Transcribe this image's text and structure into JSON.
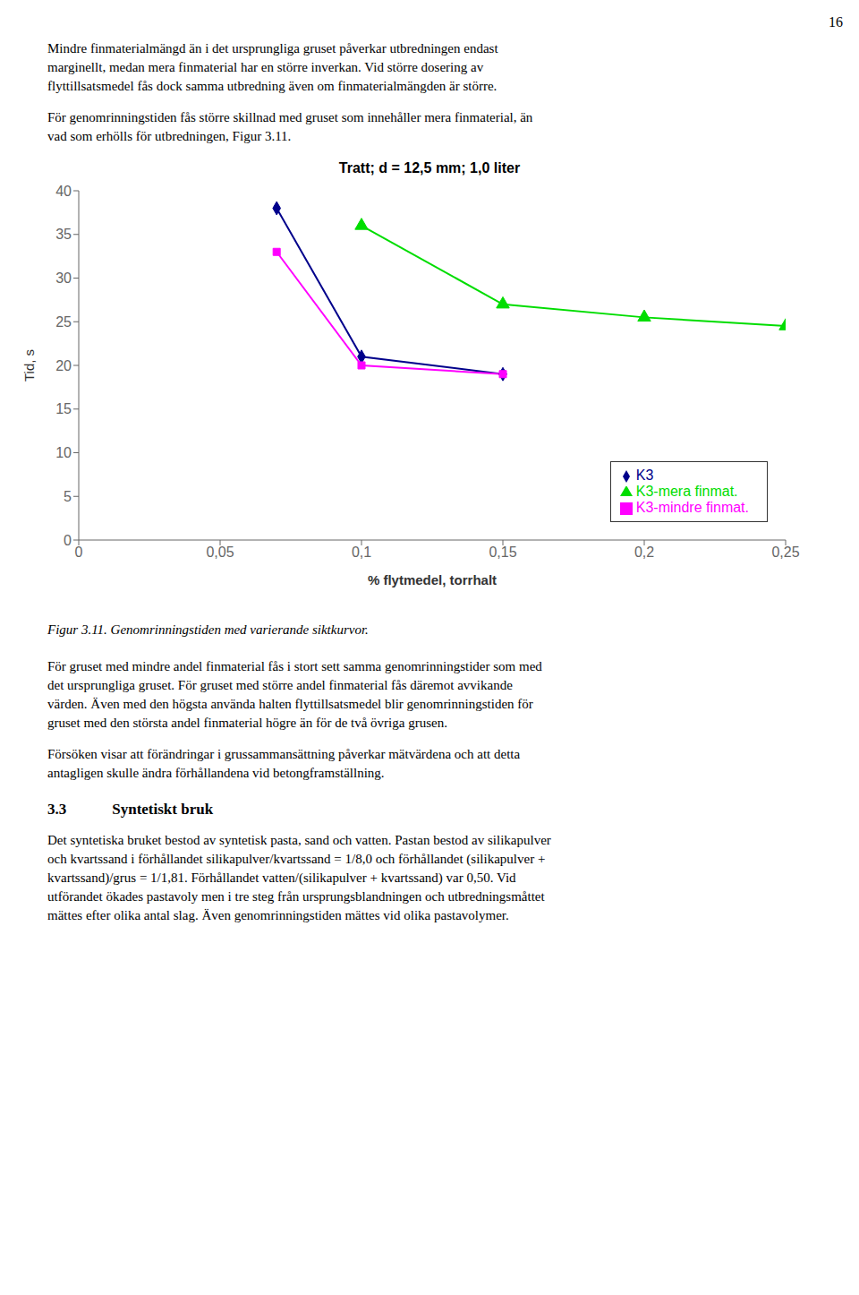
{
  "chart_data": {
    "type": "line",
    "title": "Tratt; d = 12,5 mm; 1,0 liter",
    "x_label": "% flytmedel, torrhalt",
    "y_label": "Tid, s",
    "xlim": [
      0,
      0.25
    ],
    "ylim": [
      0,
      40
    ],
    "xticks": [
      0,
      {
        "value": 0.05,
        "label": "0,05"
      },
      {
        "value": 0.1,
        "label": "0,1"
      },
      {
        "value": 0.15,
        "label": "0,15"
      },
      {
        "value": 0.2,
        "label": "0,2"
      },
      {
        "value": 0.25,
        "label": "0,25"
      }
    ],
    "yticks": [
      0,
      5,
      10,
      15,
      20,
      25,
      30,
      35,
      40
    ],
    "grid": false,
    "legend": "lower right",
    "series": [
      {
        "name": "K3",
        "color": "#00008B",
        "marker": "diamond",
        "x": [
          0.07,
          0.1,
          0.15
        ],
        "values": [
          38.0,
          21.0,
          19.0
        ]
      },
      {
        "name": "K3-mindre finmat.",
        "color": "#FF00FF",
        "marker": "square",
        "x": [
          0.07,
          0.1,
          0.15
        ],
        "values": [
          33.0,
          20.0,
          19.0
        ]
      },
      {
        "name": "K3-mera finmat.",
        "color": "#00DD00",
        "marker": "triangle",
        "x": [
          0.1,
          0.15,
          0.2,
          0.25
        ],
        "values": [
          36.0,
          27.0,
          25.5,
          24.5
        ]
      }
    ]
  },
  "page_number": "16",
  "text_before": [
    "Mindre finmaterialmängd än i det ursprungliga gruset påverkar utbredningen endast\nmarginellt, medan mera finmaterial har en större inverkan. Vid större dosering av\nflyttillsatsmedel fås dock samma utbredning även om finmaterialmängden är större.",
    "För genomrinningstiden fås större skillnad med gruset som innehåller mera finmaterial, än\nvad som erhölls för utbredningen, Figur 3.11."
  ],
  "caption": "Figur 3.11. Genomrinningstiden med varierande siktkurvor.",
  "text_after": [
    "För gruset med mindre andel finmaterial fås i stort sett samma genomrinningstider som med\ndet ursprungliga gruset. För gruset med större andel finmaterial fås däremot avvikande\nvärden. Även med den högsta använda halten flyttillsatsmedel blir genomrinningstiden för\ngruset med den största andel finmaterial högre än för de två övriga grusen.",
    "Försöken visar att förändringar i grussammansättning påverkar mätvärdena och att detta\nantagligen skulle ändra förhållandena vid betongframställning."
  ],
  "section_header": "3.3   Syntetiskt bruk",
  "text_section": [
    "Det syntetiska bruket bestod av syntetisk pasta, sand och vatten. Pastan bestod av silikapulver\noch kvartssand i förhållandet silikapulver/kvartssand = 1/8,0 och förhållandet (silikapulver +\nkvartssand)/grus = 1/1,81. Förhållandet vatten/(silikapulver + kvartssand) var 0,50. Vid\nutförandet ökades pastavoly men i tre steg från ursprungsblandningen och utbredningsmåttet\nmättes efter olika antal slag. Även genomrinningstiden mättes vid olika pastavolymer."
  ]
}
